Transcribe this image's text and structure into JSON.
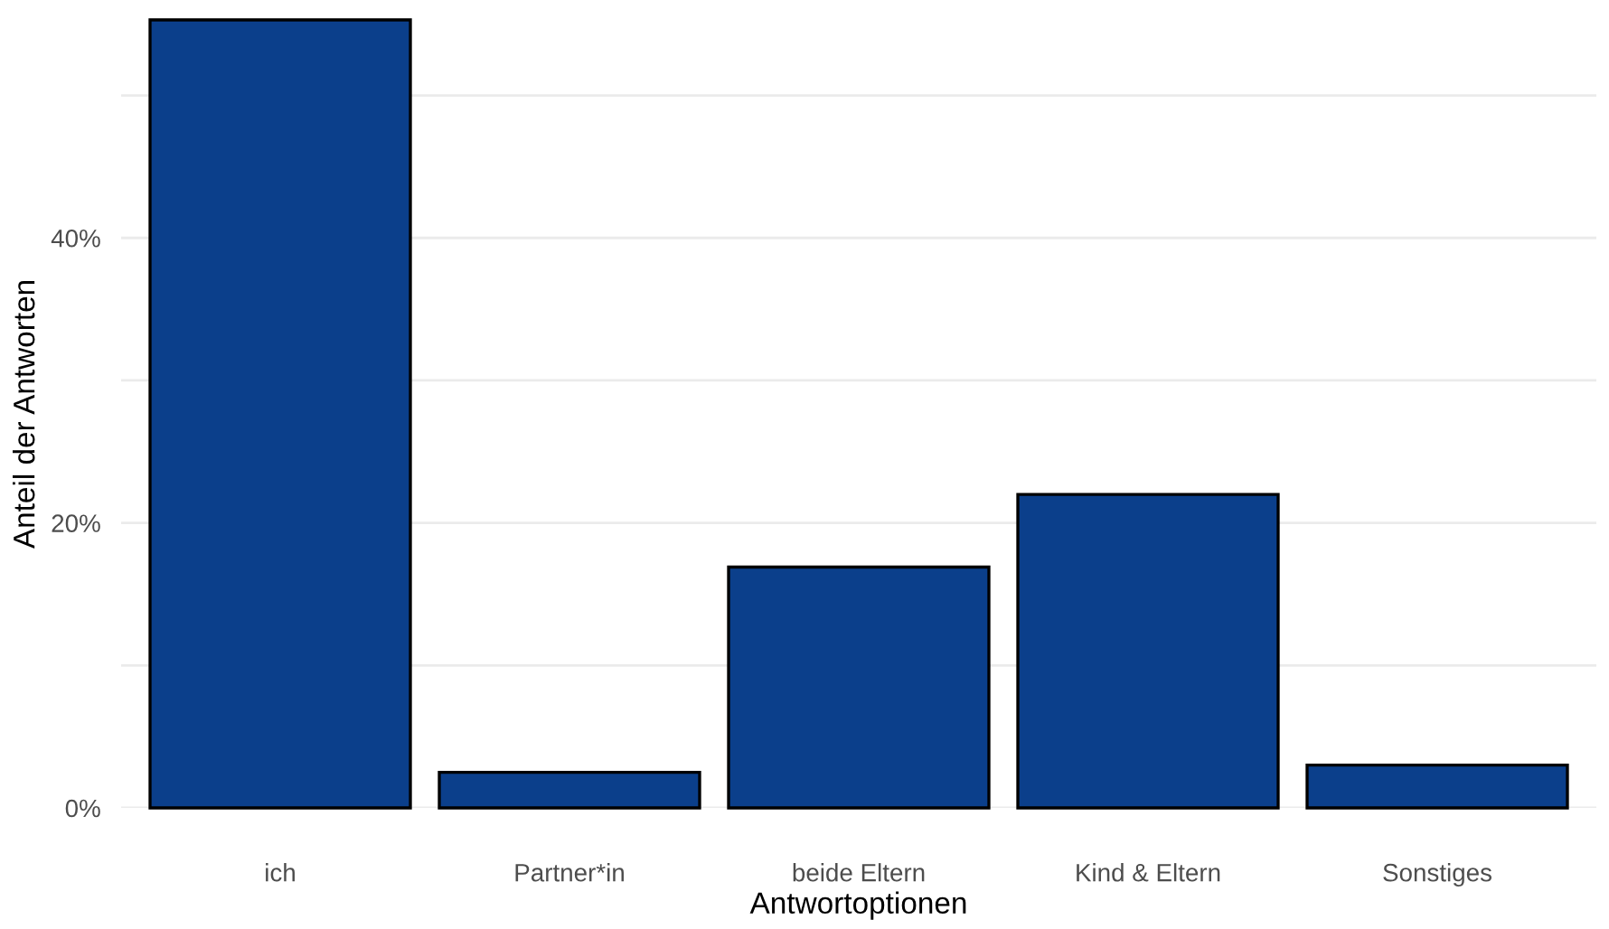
{
  "chart_data": {
    "type": "bar",
    "xlabel": "Antwortoptionen",
    "ylabel": "Anteil der Antworten",
    "categories": [
      "ich",
      "Partner*in",
      "beide Eltern",
      "Kind & Eltern",
      "Sonstiges"
    ],
    "values": [
      55.3,
      2.5,
      16.9,
      22.0,
      3.0
    ],
    "color": "#0b3f8b",
    "ylim": [
      0,
      55.3
    ],
    "yticks": [
      {
        "value": 0,
        "label": "0%"
      },
      {
        "value": 10,
        "label": null
      },
      {
        "value": 20,
        "label": "20%"
      },
      {
        "value": 30,
        "label": null
      },
      {
        "value": 40,
        "label": "40%"
      },
      {
        "value": 50,
        "label": null
      }
    ],
    "grid": "y",
    "legend": false
  }
}
